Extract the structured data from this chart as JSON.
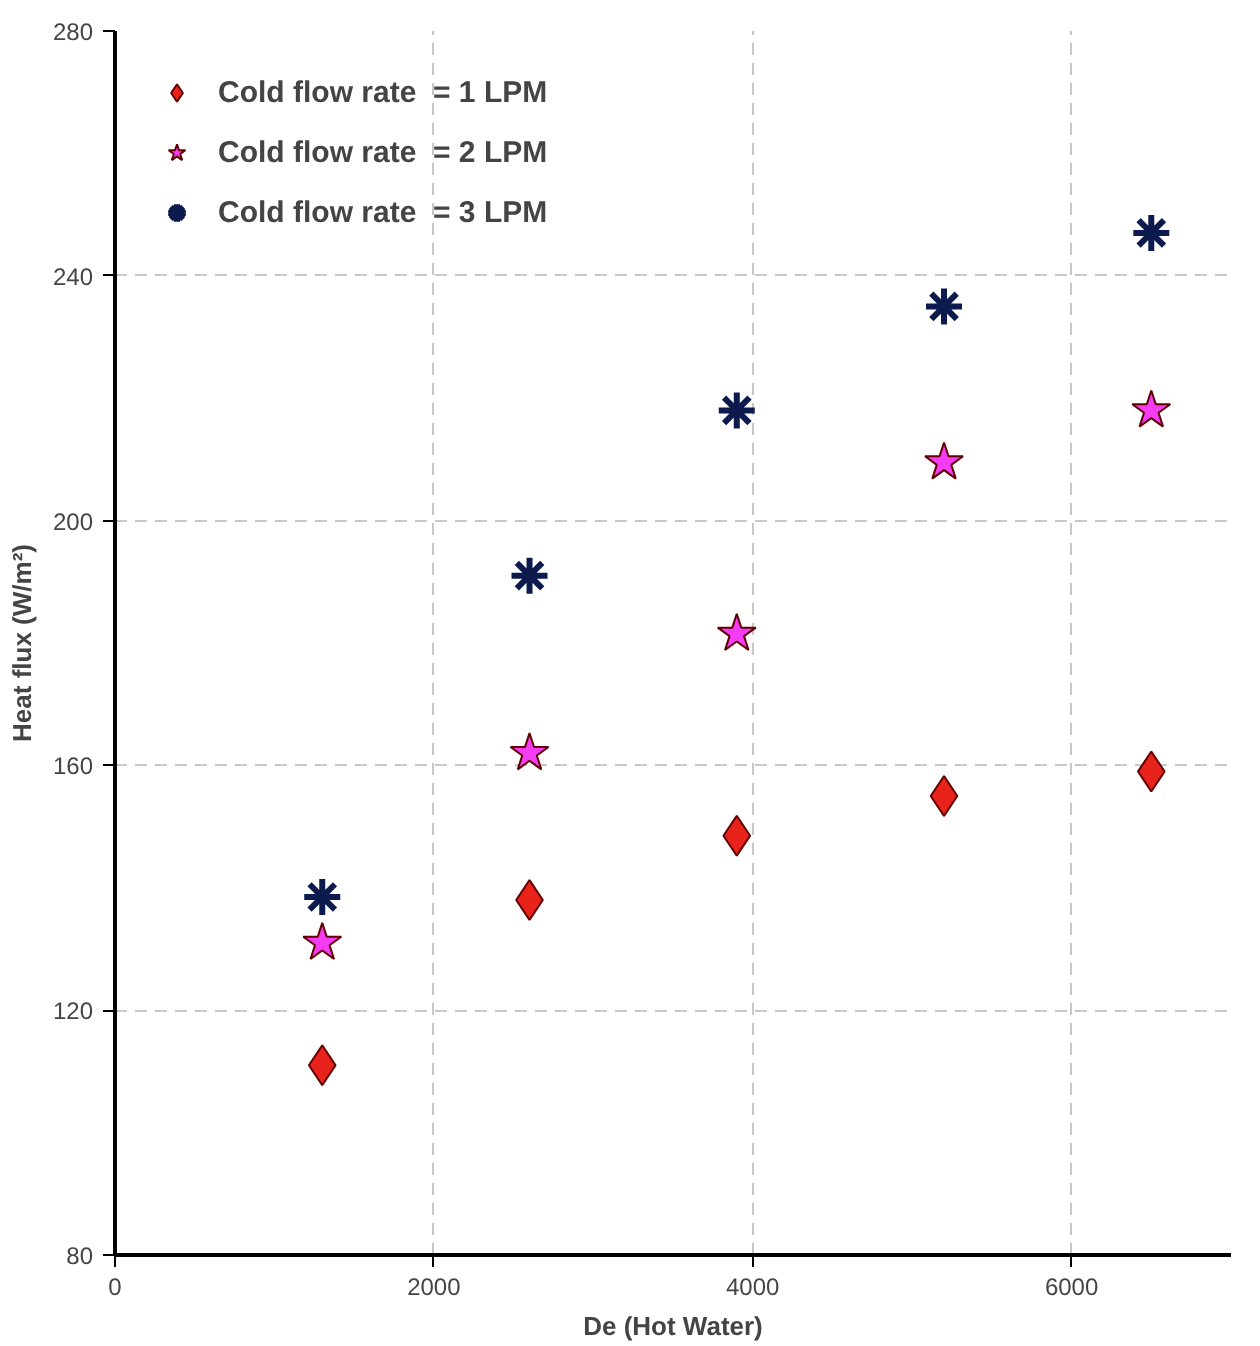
{
  "chart_data": {
    "type": "scatter",
    "xlabel": "De (Hot Water)",
    "ylabel": "Heat flux (W/m²)",
    "x": [
      1300,
      2600,
      3900,
      5200,
      6500
    ],
    "series": [
      {
        "name": "Cold flow rate  = 1 LPM",
        "color": "#e8231c",
        "marker": "diamond",
        "values": [
          111,
          138,
          148.5,
          155,
          159
        ]
      },
      {
        "name": "Cold flow rate  = 2 LPM",
        "color": "#f53cf5",
        "marker": "star",
        "values": [
          131,
          162,
          181.5,
          209.5,
          218
        ]
      },
      {
        "name": "Cold flow rate  = 3 LPM",
        "color": "#0c1a4e",
        "marker": "cross",
        "values": [
          138.5,
          191,
          218,
          235,
          247
        ]
      }
    ],
    "xlim": [
      0,
      7000
    ],
    "ylim": [
      80,
      280
    ],
    "xticks": [
      0,
      2000,
      4000,
      6000
    ],
    "yticks": [
      80,
      120,
      160,
      200,
      240,
      280
    ],
    "grid": true,
    "legend": "top left"
  }
}
